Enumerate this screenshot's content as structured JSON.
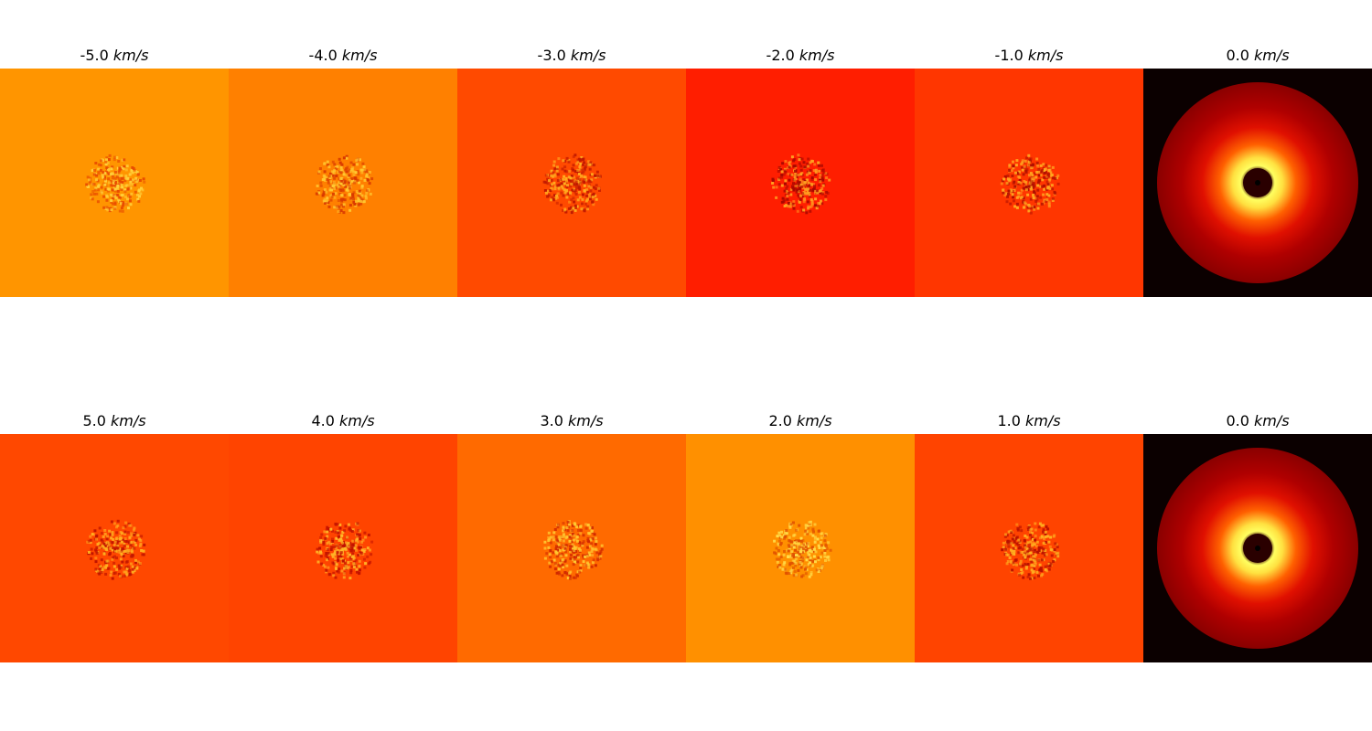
{
  "unit": "km/s",
  "rows": [
    {
      "panels": [
        {
          "velocity": "-5.0",
          "background": "#ff9500",
          "spot": "#ffd23c",
          "dark": "#e84a00",
          "type": "channel"
        },
        {
          "velocity": "-4.0",
          "background": "#ff8000",
          "spot": "#ffc930",
          "dark": "#d83800",
          "type": "channel"
        },
        {
          "velocity": "-3.0",
          "background": "#ff4a00",
          "spot": "#ffb020",
          "dark": "#c01800",
          "type": "channel"
        },
        {
          "velocity": "-2.0",
          "background": "#ff1e00",
          "spot": "#ffa020",
          "dark": "#a80800",
          "type": "channel"
        },
        {
          "velocity": "-1.0",
          "background": "#ff3600",
          "spot": "#ffa820",
          "dark": "#b01000",
          "type": "channel"
        },
        {
          "velocity": "0.0",
          "background": "#0b0000",
          "type": "disk"
        }
      ]
    },
    {
      "panels": [
        {
          "velocity": "5.0",
          "background": "#ff4800",
          "spot": "#ffb020",
          "dark": "#c01400",
          "type": "channel"
        },
        {
          "velocity": "4.0",
          "background": "#ff4400",
          "spot": "#ffb828",
          "dark": "#c01000",
          "type": "channel"
        },
        {
          "velocity": "3.0",
          "background": "#ff6a00",
          "spot": "#ffc830",
          "dark": "#d02800",
          "type": "channel"
        },
        {
          "velocity": "2.0",
          "background": "#ff9000",
          "spot": "#ffdc48",
          "dark": "#e05000",
          "type": "channel"
        },
        {
          "velocity": "1.0",
          "background": "#ff4400",
          "spot": "#ffb020",
          "dark": "#b81000",
          "type": "channel"
        },
        {
          "velocity": "0.0",
          "background": "#0b0000",
          "type": "disk"
        }
      ]
    }
  ]
}
